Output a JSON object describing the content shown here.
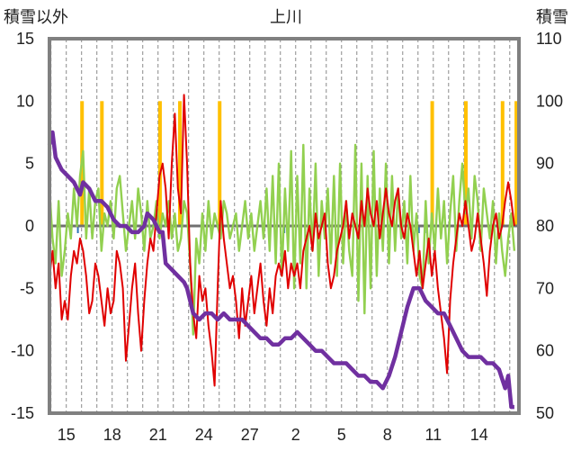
{
  "chart_data": {
    "type": "line",
    "title": "上川",
    "ylabel_left": "積雪以外",
    "ylabel_right": "積雪",
    "x_ticks": [
      "15",
      "18",
      "21",
      "24",
      "27",
      "2",
      "5",
      "8",
      "11",
      "14"
    ],
    "ylim_left": [
      -15,
      15
    ],
    "y_ticks_left": [
      15,
      10,
      5,
      0,
      -5,
      -10,
      -15
    ],
    "ylim_right": [
      50,
      110
    ],
    "y_ticks_right": [
      110,
      100,
      90,
      80,
      70,
      60,
      50
    ],
    "grid": "vertical dashed",
    "colors": {
      "frame": "#808080",
      "zero_line": "#707070",
      "red_series": "#e00000",
      "green_series": "#92d050",
      "purple_series": "#7030a0",
      "orange_bars": "#ffc000",
      "small_bars": "#2e75b6"
    },
    "red_series": [
      [
        13.9,
        -4
      ],
      [
        14.1,
        -2
      ],
      [
        14.3,
        -5
      ],
      [
        14.5,
        -3
      ],
      [
        14.7,
        -7.5
      ],
      [
        14.9,
        -6
      ],
      [
        15.1,
        -7.5
      ],
      [
        15.3,
        -4
      ],
      [
        15.5,
        -2
      ],
      [
        15.7,
        -3
      ],
      [
        15.9,
        -1
      ],
      [
        16.1,
        -2
      ],
      [
        16.3,
        -4
      ],
      [
        16.5,
        -7
      ],
      [
        16.7,
        -6
      ],
      [
        16.9,
        -3
      ],
      [
        17.1,
        -4
      ],
      [
        17.3,
        -6
      ],
      [
        17.5,
        -8
      ],
      [
        17.7,
        -5
      ],
      [
        17.9,
        -7
      ],
      [
        18.1,
        -6
      ],
      [
        18.3,
        -2
      ],
      [
        18.5,
        -3
      ],
      [
        18.7,
        -5
      ],
      [
        18.9,
        -10.8
      ],
      [
        19.1,
        -8
      ],
      [
        19.3,
        -5
      ],
      [
        19.5,
        -3
      ],
      [
        19.7,
        -7
      ],
      [
        19.9,
        -10
      ],
      [
        20.1,
        -6
      ],
      [
        20.3,
        -3
      ],
      [
        20.5,
        -1
      ],
      [
        20.7,
        -2
      ],
      [
        20.9,
        1
      ],
      [
        21.1,
        4
      ],
      [
        21.3,
        5
      ],
      [
        21.5,
        3
      ],
      [
        21.7,
        -1
      ],
      [
        21.9,
        5
      ],
      [
        22.1,
        9
      ],
      [
        22.3,
        3
      ],
      [
        22.5,
        1
      ],
      [
        22.7,
        10.5
      ],
      [
        22.9,
        5
      ],
      [
        23.1,
        -3
      ],
      [
        23.3,
        -7
      ],
      [
        23.5,
        -9
      ],
      [
        23.7,
        -4
      ],
      [
        23.9,
        -6
      ],
      [
        24.1,
        -5
      ],
      [
        24.3,
        -8
      ],
      [
        24.5,
        -10
      ],
      [
        24.7,
        -12.8
      ],
      [
        24.9,
        -5
      ],
      [
        25.1,
        2
      ],
      [
        25.3,
        -1
      ],
      [
        25.5,
        -3
      ],
      [
        25.7,
        -5
      ],
      [
        25.9,
        -4
      ],
      [
        26.1,
        -6
      ],
      [
        26.3,
        -9
      ],
      [
        26.5,
        -5
      ],
      [
        26.7,
        -8
      ],
      [
        26.9,
        -6
      ],
      [
        27.1,
        -4
      ],
      [
        27.3,
        -7
      ],
      [
        27.5,
        -5
      ],
      [
        27.7,
        -3
      ],
      [
        27.9,
        -6
      ],
      [
        28.1,
        -8
      ],
      [
        28.3,
        -5
      ],
      [
        28.5,
        -7
      ],
      [
        28.7,
        -4
      ],
      [
        28.9,
        -3
      ],
      [
        29.1,
        -4
      ],
      [
        29.3,
        -2
      ],
      [
        29.5,
        -5
      ],
      [
        29.7,
        -3
      ],
      [
        29.9,
        -4
      ],
      [
        30.1,
        -3
      ],
      [
        30.3,
        -5
      ],
      [
        30.5,
        -2
      ],
      [
        30.7,
        -1
      ],
      [
        30.9,
        0
      ],
      [
        31.1,
        -2
      ],
      [
        31.3,
        1
      ],
      [
        31.5,
        -1
      ],
      [
        31.7,
        0
      ],
      [
        31.9,
        1
      ],
      [
        32.1,
        -3
      ],
      [
        32.3,
        -5
      ],
      [
        32.5,
        -4
      ],
      [
        32.7,
        -2
      ],
      [
        32.9,
        -1
      ],
      [
        33.1,
        0
      ],
      [
        33.3,
        2
      ],
      [
        33.5,
        -1
      ],
      [
        33.7,
        1
      ],
      [
        33.9,
        0
      ],
      [
        34.1,
        -1
      ],
      [
        34.3,
        2
      ],
      [
        34.5,
        0
      ],
      [
        34.7,
        3
      ],
      [
        34.9,
        1
      ],
      [
        35.1,
        0
      ],
      [
        35.3,
        2
      ],
      [
        35.5,
        -1
      ],
      [
        35.7,
        1
      ],
      [
        35.9,
        3
      ],
      [
        36.1,
        1
      ],
      [
        36.3,
        0
      ],
      [
        36.5,
        2
      ],
      [
        36.7,
        3
      ],
      [
        36.9,
        0
      ],
      [
        37.1,
        -1
      ],
      [
        37.3,
        1
      ],
      [
        37.5,
        0
      ],
      [
        37.7,
        -2
      ],
      [
        37.9,
        -4
      ],
      [
        38.1,
        -2
      ],
      [
        38.3,
        -5
      ],
      [
        38.5,
        -3
      ],
      [
        38.7,
        -1
      ],
      [
        38.9,
        -4
      ],
      [
        39.1,
        -2
      ],
      [
        39.3,
        -5
      ],
      [
        39.5,
        -7
      ],
      [
        39.7,
        -9
      ],
      [
        39.9,
        -11.8
      ],
      [
        40.1,
        -6
      ],
      [
        40.3,
        -3
      ],
      [
        40.5,
        -1
      ],
      [
        40.7,
        1
      ],
      [
        40.9,
        0
      ],
      [
        41.1,
        2
      ],
      [
        41.3,
        0
      ],
      [
        41.5,
        -2
      ],
      [
        41.7,
        -1
      ],
      [
        41.9,
        1
      ],
      [
        42.1,
        -1
      ],
      [
        42.3,
        -3
      ],
      [
        42.5,
        -5.6
      ],
      [
        42.7,
        -2
      ],
      [
        42.9,
        0
      ],
      [
        43.1,
        1
      ],
      [
        43.3,
        -1
      ],
      [
        43.5,
        0
      ],
      [
        43.7,
        2
      ],
      [
        43.9,
        3.5
      ],
      [
        44.1,
        2
      ],
      [
        44.3,
        0
      ]
    ],
    "green_series": [
      [
        13.9,
        3
      ],
      [
        14.1,
        -1
      ],
      [
        14.3,
        -3
      ],
      [
        14.5,
        2
      ],
      [
        14.7,
        -4
      ],
      [
        14.9,
        -2
      ],
      [
        15.1,
        1
      ],
      [
        15.3,
        -1
      ],
      [
        15.5,
        3
      ],
      [
        15.7,
        0
      ],
      [
        15.9,
        4
      ],
      [
        16.1,
        6
      ],
      [
        16.3,
        -1
      ],
      [
        16.5,
        3
      ],
      [
        16.7,
        -1
      ],
      [
        16.9,
        2
      ],
      [
        17.1,
        3
      ],
      [
        17.3,
        -2
      ],
      [
        17.5,
        1
      ],
      [
        17.7,
        0
      ],
      [
        17.9,
        2
      ],
      [
        18.1,
        -1
      ],
      [
        18.3,
        3
      ],
      [
        18.5,
        4
      ],
      [
        18.7,
        1
      ],
      [
        18.9,
        -2
      ],
      [
        19.1,
        0
      ],
      [
        19.3,
        2
      ],
      [
        19.5,
        -1
      ],
      [
        19.7,
        3
      ],
      [
        19.9,
        1
      ],
      [
        20.1,
        -2
      ],
      [
        20.3,
        2
      ],
      [
        20.5,
        -1
      ],
      [
        20.7,
        0
      ],
      [
        20.9,
        2
      ],
      [
        21.1,
        -1
      ],
      [
        21.3,
        1
      ],
      [
        21.5,
        0
      ],
      [
        21.7,
        2
      ],
      [
        21.9,
        -1
      ],
      [
        22.1,
        1
      ],
      [
        22.3,
        -2
      ],
      [
        22.5,
        -1
      ],
      [
        22.7,
        2
      ],
      [
        22.9,
        1
      ],
      [
        23.1,
        -3
      ],
      [
        23.3,
        -8.7
      ],
      [
        23.5,
        -1
      ],
      [
        23.7,
        -3
      ],
      [
        23.9,
        1
      ],
      [
        24.1,
        -2
      ],
      [
        24.3,
        2
      ],
      [
        24.5,
        -1
      ],
      [
        24.7,
        1
      ],
      [
        24.9,
        0
      ],
      [
        25.1,
        -1
      ],
      [
        25.3,
        2
      ],
      [
        25.5,
        1
      ],
      [
        25.7,
        -1
      ],
      [
        25.9,
        0
      ],
      [
        26.1,
        1
      ],
      [
        26.3,
        -2
      ],
      [
        26.5,
        0
      ],
      [
        26.7,
        2
      ],
      [
        26.9,
        -1
      ],
      [
        27.1,
        1
      ],
      [
        27.3,
        -2
      ],
      [
        27.5,
        0
      ],
      [
        27.7,
        2
      ],
      [
        27.9,
        -1
      ],
      [
        28.1,
        3
      ],
      [
        28.3,
        -2
      ],
      [
        28.5,
        4
      ],
      [
        28.7,
        -3
      ],
      [
        28.9,
        5
      ],
      [
        29.1,
        -4
      ],
      [
        29.3,
        3
      ],
      [
        29.5,
        -2
      ],
      [
        29.7,
        6
      ],
      [
        29.9,
        -5
      ],
      [
        30.1,
        4
      ],
      [
        30.3,
        -3
      ],
      [
        30.5,
        6.5
      ],
      [
        30.7,
        -5
      ],
      [
        30.9,
        3
      ],
      [
        31.1,
        -2
      ],
      [
        31.3,
        5
      ],
      [
        31.5,
        -4
      ],
      [
        31.7,
        2
      ],
      [
        31.9,
        -1
      ],
      [
        32.1,
        3
      ],
      [
        32.3,
        -3
      ],
      [
        32.5,
        4
      ],
      [
        32.7,
        -4
      ],
      [
        32.9,
        5
      ],
      [
        33.1,
        -3
      ],
      [
        33.3,
        2
      ],
      [
        33.5,
        -2
      ],
      [
        33.7,
        -4
      ],
      [
        33.9,
        6.5
      ],
      [
        34.1,
        -6
      ],
      [
        34.3,
        5
      ],
      [
        34.5,
        -7
      ],
      [
        34.7,
        4
      ],
      [
        34.9,
        -5
      ],
      [
        35.1,
        6
      ],
      [
        35.3,
        -4
      ],
      [
        35.5,
        3
      ],
      [
        35.7,
        -2
      ],
      [
        35.9,
        5
      ],
      [
        36.1,
        -3
      ],
      [
        36.3,
        4
      ],
      [
        36.5,
        -2
      ],
      [
        36.7,
        3
      ],
      [
        36.9,
        -1
      ],
      [
        37.1,
        2
      ],
      [
        37.3,
        -3
      ],
      [
        37.5,
        4
      ],
      [
        37.7,
        -2
      ],
      [
        37.9,
        1
      ],
      [
        38.1,
        -4
      ],
      [
        38.3,
        -5
      ],
      [
        38.5,
        2
      ],
      [
        38.7,
        -3
      ],
      [
        38.9,
        1
      ],
      [
        39.1,
        -2
      ],
      [
        39.3,
        3
      ],
      [
        39.5,
        -1
      ],
      [
        39.7,
        2
      ],
      [
        39.9,
        -3
      ],
      [
        40.1,
        1
      ],
      [
        40.3,
        4
      ],
      [
        40.5,
        -2
      ],
      [
        40.7,
        2
      ],
      [
        40.9,
        5
      ],
      [
        41.1,
        1
      ],
      [
        41.3,
        3
      ],
      [
        41.5,
        -1
      ],
      [
        41.7,
        4
      ],
      [
        41.9,
        2
      ],
      [
        42.1,
        -2
      ],
      [
        42.3,
        3
      ],
      [
        42.5,
        1
      ],
      [
        42.7,
        -1
      ],
      [
        42.9,
        2
      ],
      [
        43.1,
        -3
      ],
      [
        43.3,
        1
      ],
      [
        43.5,
        -2
      ],
      [
        43.7,
        -4
      ],
      [
        43.9,
        -1
      ],
      [
        44.1,
        1
      ],
      [
        44.3,
        -2
      ]
    ],
    "purple_series": [
      [
        13.9,
        93
      ],
      [
        14.1,
        95
      ],
      [
        14.3,
        91
      ],
      [
        14.7,
        89
      ],
      [
        15.1,
        88
      ],
      [
        15.5,
        87
      ],
      [
        15.9,
        85
      ],
      [
        16.1,
        87
      ],
      [
        16.5,
        86
      ],
      [
        16.9,
        84
      ],
      [
        17.3,
        84
      ],
      [
        17.7,
        83
      ],
      [
        18.1,
        81
      ],
      [
        18.5,
        80
      ],
      [
        18.9,
        80
      ],
      [
        19.3,
        79
      ],
      [
        19.7,
        79
      ],
      [
        20.1,
        80
      ],
      [
        20.3,
        82
      ],
      [
        20.7,
        81
      ],
      [
        21.1,
        79
      ],
      [
        21.3,
        79
      ],
      [
        21.5,
        74
      ],
      [
        21.9,
        73
      ],
      [
        22.3,
        72
      ],
      [
        22.7,
        71
      ],
      [
        22.9,
        70
      ],
      [
        23.3,
        66
      ],
      [
        23.7,
        65
      ],
      [
        24.1,
        66
      ],
      [
        24.5,
        66
      ],
      [
        24.9,
        65
      ],
      [
        25.3,
        66
      ],
      [
        25.7,
        65
      ],
      [
        26.1,
        65
      ],
      [
        26.5,
        65
      ],
      [
        26.9,
        64
      ],
      [
        27.3,
        63
      ],
      [
        27.7,
        62
      ],
      [
        28.1,
        62
      ],
      [
        28.5,
        61
      ],
      [
        28.9,
        61
      ],
      [
        29.3,
        62
      ],
      [
        29.7,
        62
      ],
      [
        30.1,
        63
      ],
      [
        30.5,
        62
      ],
      [
        30.9,
        61
      ],
      [
        31.3,
        60
      ],
      [
        31.7,
        60
      ],
      [
        32.1,
        59
      ],
      [
        32.5,
        58
      ],
      [
        32.9,
        58
      ],
      [
        33.3,
        58
      ],
      [
        33.7,
        57
      ],
      [
        34.1,
        56
      ],
      [
        34.5,
        56
      ],
      [
        34.9,
        55
      ],
      [
        35.3,
        55
      ],
      [
        35.7,
        54
      ],
      [
        36.1,
        56
      ],
      [
        36.5,
        59
      ],
      [
        36.9,
        63
      ],
      [
        37.3,
        67
      ],
      [
        37.7,
        70
      ],
      [
        38.1,
        70
      ],
      [
        38.5,
        68
      ],
      [
        38.9,
        67
      ],
      [
        39.3,
        66
      ],
      [
        39.7,
        66
      ],
      [
        40.1,
        64
      ],
      [
        40.5,
        62
      ],
      [
        40.9,
        60
      ],
      [
        41.3,
        59
      ],
      [
        41.7,
        59
      ],
      [
        42.1,
        59
      ],
      [
        42.5,
        58
      ],
      [
        42.9,
        58
      ],
      [
        43.3,
        57
      ],
      [
        43.7,
        54
      ],
      [
        43.9,
        56
      ],
      [
        44.1,
        51
      ],
      [
        44.3,
        51
      ]
    ],
    "orange_bars": [
      16.0,
      17.3,
      21.1,
      22.4,
      25.0,
      38.9,
      41.1,
      43.5,
      44.4
    ]
  }
}
